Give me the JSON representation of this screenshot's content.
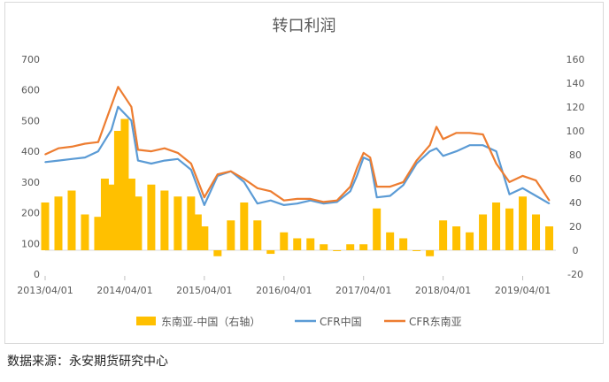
{
  "chart_data": {
    "type": "line",
    "title": "转口利润",
    "left_axis": {
      "ylim": [
        0,
        700
      ],
      "ticks": [
        "0",
        "100",
        "200",
        "300",
        "400",
        "500",
        "600",
        "700"
      ]
    },
    "right_axis": {
      "ylim": [
        -20,
        160
      ],
      "ticks": [
        "-20",
        "0",
        "20",
        "40",
        "60",
        "80",
        "100",
        "120",
        "140",
        "160"
      ]
    },
    "x_ticks": [
      "2013/04/01",
      "2014/04/01",
      "2015/04/01",
      "2016/04/01",
      "2017/04/01",
      "2018/04/01",
      "2019/04/01"
    ],
    "x_range": [
      "2013/04/01",
      "2019/09/01"
    ],
    "grid": false,
    "legend_position": "bottom",
    "series": [
      {
        "name": "东南亚-中国（右轴）",
        "type": "area",
        "axis": "right",
        "color": "#ffc000",
        "x": [
          "2013/04",
          "2013/06",
          "2013/08",
          "2013/10",
          "2013/12",
          "2014/01",
          "2014/02",
          "2014/03",
          "2014/04",
          "2014/05",
          "2014/06",
          "2014/08",
          "2014/10",
          "2014/12",
          "2015/02",
          "2015/03",
          "2015/04",
          "2015/06",
          "2015/08",
          "2015/10",
          "2015/12",
          "2016/02",
          "2016/04",
          "2016/06",
          "2016/08",
          "2016/10",
          "2016/12",
          "2017/02",
          "2017/04",
          "2017/06",
          "2017/08",
          "2017/10",
          "2017/12",
          "2018/02",
          "2018/04",
          "2018/06",
          "2018/08",
          "2018/10",
          "2018/12",
          "2019/02",
          "2019/04",
          "2019/06",
          "2019/08"
        ],
        "values": [
          40,
          45,
          50,
          30,
          28,
          60,
          55,
          100,
          110,
          60,
          45,
          55,
          50,
          45,
          45,
          30,
          20,
          -5,
          25,
          40,
          25,
          -3,
          15,
          10,
          10,
          5,
          0,
          5,
          5,
          35,
          15,
          10,
          0,
          -5,
          25,
          20,
          15,
          30,
          40,
          35,
          45,
          30,
          20
        ]
      },
      {
        "name": "CFR中国",
        "type": "line",
        "axis": "left",
        "color": "#5b9bd5",
        "x": [
          "2013/04",
          "2013/06",
          "2013/08",
          "2013/10",
          "2013/12",
          "2014/02",
          "2014/03",
          "2014/05",
          "2014/06",
          "2014/08",
          "2014/10",
          "2014/12",
          "2015/02",
          "2015/04",
          "2015/06",
          "2015/08",
          "2015/10",
          "2015/12",
          "2016/02",
          "2016/04",
          "2016/06",
          "2016/08",
          "2016/10",
          "2016/12",
          "2017/02",
          "2017/03",
          "2017/04",
          "2017/05",
          "2017/06",
          "2017/08",
          "2017/10",
          "2017/12",
          "2018/02",
          "2018/03",
          "2018/04",
          "2018/06",
          "2018/08",
          "2018/10",
          "2018/12",
          "2019/02",
          "2019/04",
          "2019/06",
          "2019/08"
        ],
        "values": [
          365,
          370,
          375,
          380,
          400,
          470,
          545,
          500,
          370,
          360,
          370,
          375,
          340,
          225,
          320,
          335,
          300,
          230,
          240,
          225,
          230,
          240,
          230,
          235,
          270,
          320,
          380,
          370,
          250,
          255,
          290,
          360,
          400,
          410,
          385,
          400,
          420,
          420,
          400,
          260,
          280,
          255,
          230
        ]
      },
      {
        "name": "CFR东南亚",
        "type": "line",
        "axis": "left",
        "color": "#ed7d31",
        "x": [
          "2013/04",
          "2013/06",
          "2013/08",
          "2013/10",
          "2013/12",
          "2014/02",
          "2014/03",
          "2014/05",
          "2014/06",
          "2014/08",
          "2014/10",
          "2014/12",
          "2015/02",
          "2015/04",
          "2015/06",
          "2015/08",
          "2015/10",
          "2015/12",
          "2016/02",
          "2016/04",
          "2016/06",
          "2016/08",
          "2016/10",
          "2016/12",
          "2017/02",
          "2017/03",
          "2017/04",
          "2017/05",
          "2017/06",
          "2017/08",
          "2017/10",
          "2017/12",
          "2018/02",
          "2018/03",
          "2018/04",
          "2018/06",
          "2018/08",
          "2018/10",
          "2018/12",
          "2019/02",
          "2019/04",
          "2019/06",
          "2019/08"
        ],
        "values": [
          390,
          410,
          415,
          425,
          430,
          550,
          610,
          545,
          405,
          400,
          410,
          395,
          360,
          250,
          325,
          335,
          310,
          280,
          270,
          240,
          245,
          245,
          235,
          240,
          285,
          345,
          395,
          380,
          285,
          285,
          300,
          370,
          420,
          480,
          440,
          460,
          460,
          455,
          360,
          300,
          320,
          305,
          240
        ]
      }
    ]
  },
  "source_text": "数据来源：永安期货研究中心"
}
